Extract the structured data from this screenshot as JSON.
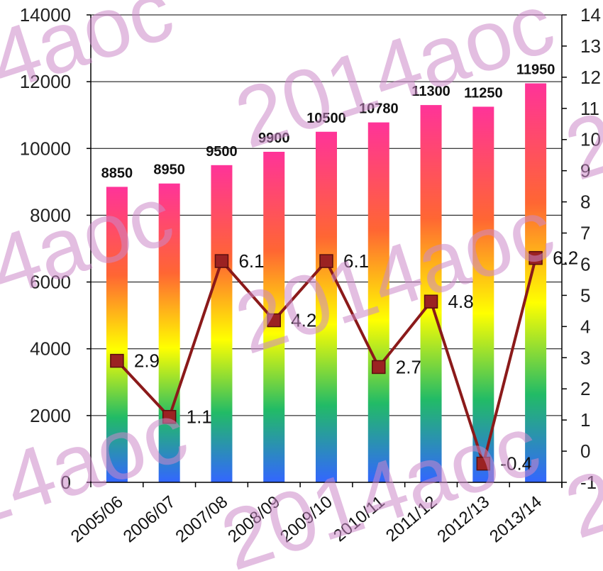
{
  "chart_data": {
    "type": "bar",
    "title": "",
    "categories": [
      "2005/06",
      "2006/07",
      "2007/08",
      "2008/09",
      "2009/10",
      "2010/11",
      "2011/12",
      "2012/13",
      "2013/14"
    ],
    "bars": {
      "values": [
        8850,
        8950,
        9500,
        9900,
        10500,
        10780,
        11300,
        11250,
        11950
      ],
      "labels": [
        "8850",
        "8950",
        "9500",
        "9900",
        "10500",
        "10780",
        "11300",
        "11250",
        "11950"
      ],
      "gradient": [
        "#ff3399",
        "#ff6633",
        "#ffff00",
        "#33bb55",
        "#3366ff"
      ]
    },
    "line": {
      "values": [
        2.9,
        1.1,
        6.1,
        4.2,
        6.1,
        2.7,
        4.8,
        -0.4,
        6.2
      ],
      "labels": [
        "2.9",
        "1.1",
        "6.1",
        "4.2",
        "6.1",
        "2.7",
        "4.8",
        "-0.4",
        "6.2"
      ],
      "line_color": "#8b1a1a",
      "marker_color": "#9b2222"
    },
    "y_left": {
      "min": 0,
      "max": 14000,
      "ticks": [
        "0",
        "2000",
        "4000",
        "6000",
        "8000",
        "10000",
        "12000",
        "14000"
      ]
    },
    "y_right": {
      "min": -1,
      "max": 14,
      "ticks": [
        "-1",
        "0",
        "1",
        "2",
        "3",
        "4",
        "5",
        "6",
        "7",
        "8",
        "9",
        "10",
        "11",
        "12",
        "13",
        "14"
      ]
    },
    "grid": true
  },
  "watermark": {
    "text": "2014aoc",
    "fragments": [
      "14aoc",
      "2014aoc",
      "14aoc",
      "2014aoc",
      "14aoc",
      "2014aoc",
      "2",
      "2"
    ]
  }
}
